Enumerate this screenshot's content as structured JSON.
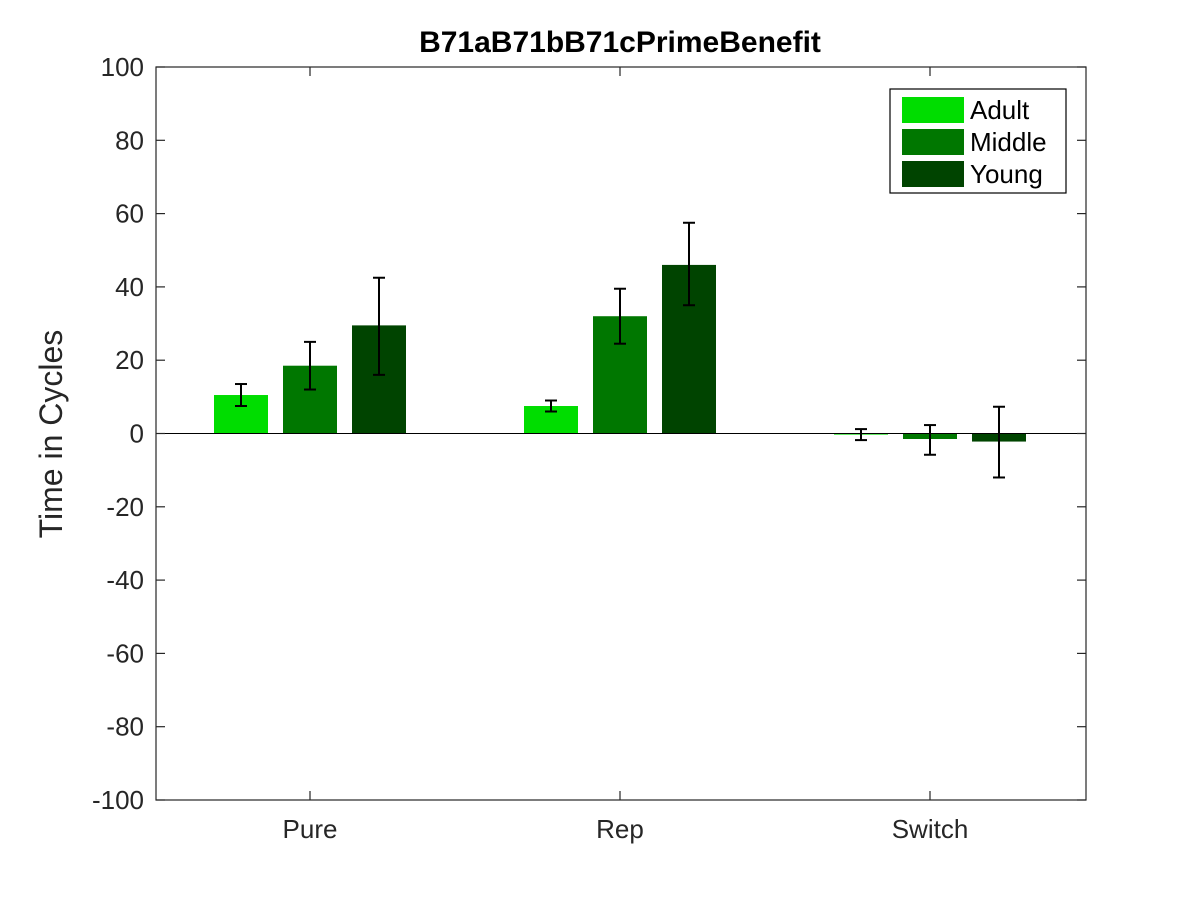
{
  "chart_data": {
    "type": "bar",
    "title": "B71aB71bB71cPrimeBenefit",
    "xlabel": "",
    "ylabel": "Time in Cycles",
    "ylim": [
      -100,
      100
    ],
    "yticks": [
      100,
      80,
      60,
      40,
      20,
      0,
      -20,
      -40,
      -60,
      -80,
      -100
    ],
    "ytick_labels": [
      "100",
      "80",
      "60",
      "40",
      "20",
      "0",
      "-20",
      "-40",
      "-60",
      "-80",
      "-100"
    ],
    "categories": [
      "Pure",
      "Rep",
      "Switch"
    ],
    "series": [
      {
        "name": "Adult",
        "color": "#00dd00",
        "values": [
          10.5,
          7.5,
          -0.3
        ],
        "err_low": [
          7.5,
          6.0,
          -1.8
        ],
        "err_high": [
          13.5,
          9.0,
          1.2
        ]
      },
      {
        "name": "Middle",
        "color": "#007700",
        "values": [
          18.5,
          32.0,
          -1.5
        ],
        "err_low": [
          12.0,
          24.5,
          -5.8
        ],
        "err_high": [
          25.0,
          39.5,
          2.3
        ]
      },
      {
        "name": "Young",
        "color": "#004400",
        "values": [
          29.5,
          46.0,
          -2.2
        ],
        "err_low": [
          16.0,
          35.0,
          -12.0
        ],
        "err_high": [
          42.5,
          57.5,
          7.3
        ]
      }
    ],
    "legend_position": "top-right",
    "grid": false,
    "zero_line": true
  }
}
